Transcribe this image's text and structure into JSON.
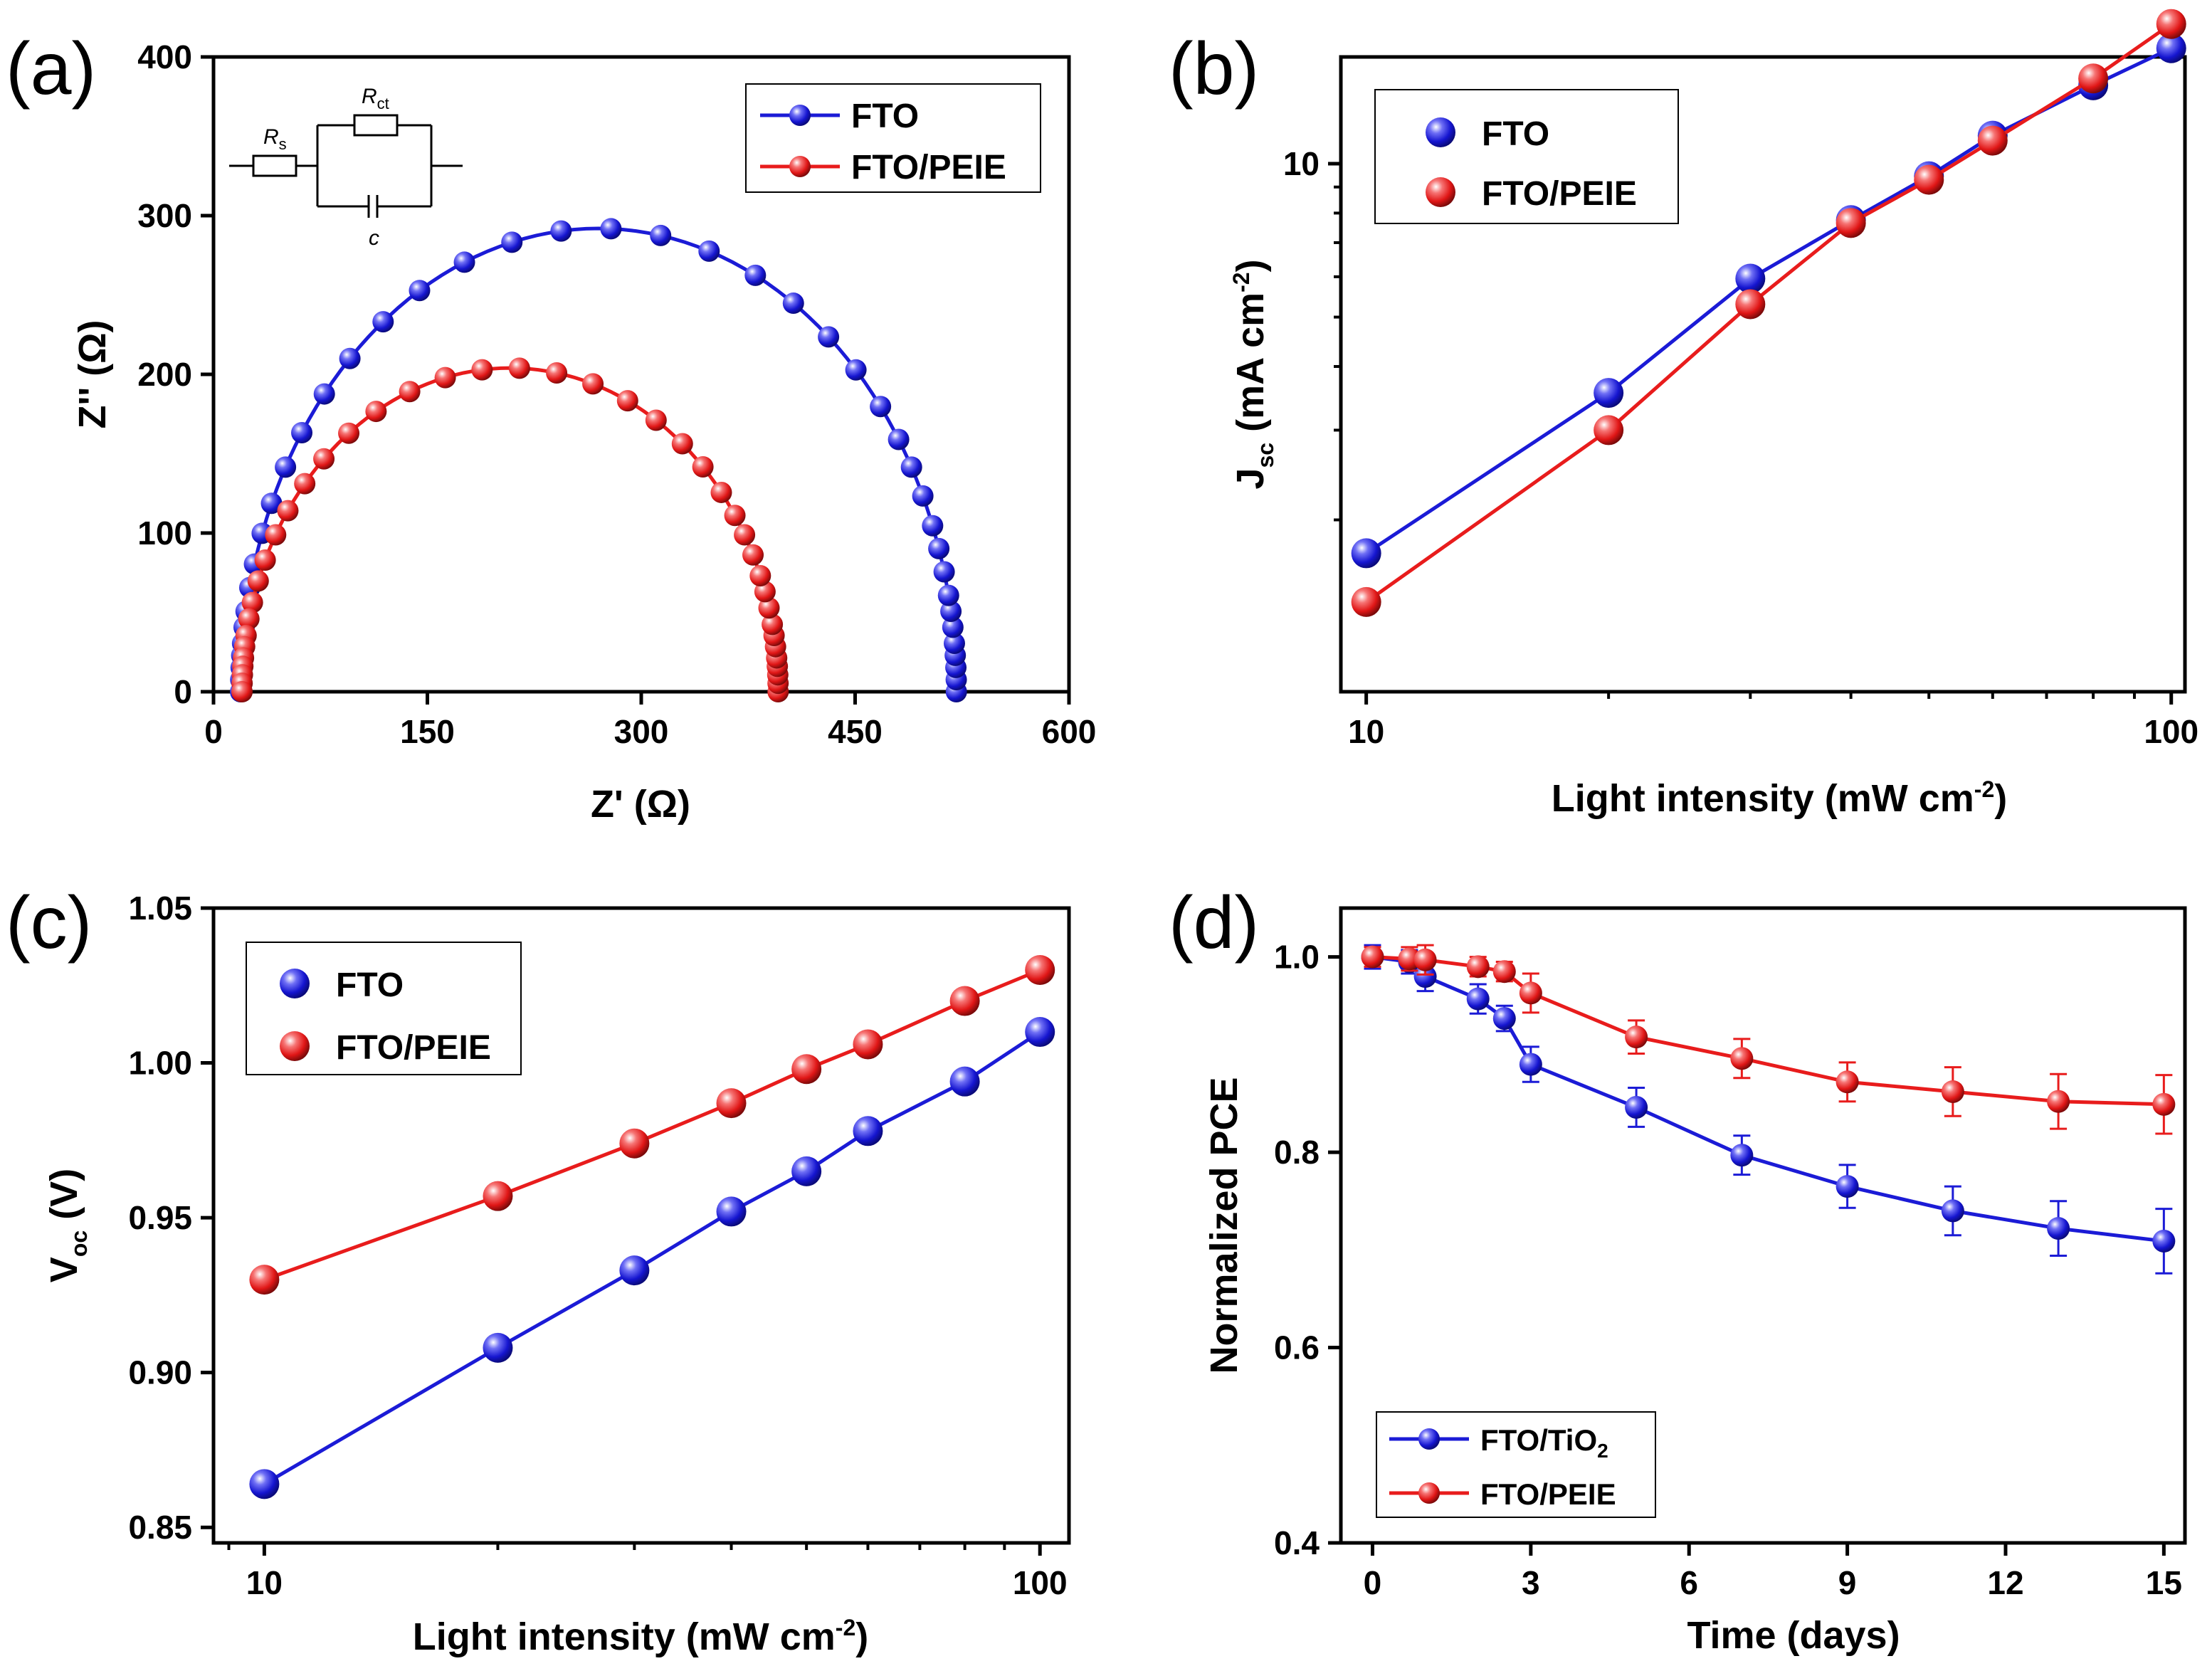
{
  "colors": {
    "fto": "#1b1bd6",
    "peie": "#e81c1c",
    "axis": "#000000"
  },
  "chart_data": [
    {
      "panel": "(a)",
      "type": "scatter",
      "xlabel_main": "Z'",
      "xlabel_unit": "(Ω)",
      "ylabel_main": "Z''",
      "ylabel_unit": "(Ω)",
      "xlim": [
        0,
        600
      ],
      "ylim": [
        0,
        400
      ],
      "xticks": [
        0,
        150,
        300,
        450,
        600
      ],
      "yticks": [
        0,
        100,
        200,
        300,
        400
      ],
      "xtick_labels": [
        "0",
        "150",
        "300",
        "450",
        "600"
      ],
      "ytick_labels": [
        "0",
        "100",
        "200",
        "300",
        "400"
      ],
      "legend_position": "top-right",
      "inset": {
        "rs_main": "R",
        "rs_sub": "s",
        "rct_main": "R",
        "rct_sub": "ct",
        "c_label": "c"
      },
      "series": [
        {
          "name": "FTO",
          "key": "fto",
          "shape": "semicircle",
          "color": "#1b1bd6",
          "center": 270,
          "radius": 251,
          "yscale": 1.163,
          "angles_deg": [
            0,
            1.5,
            3,
            4.5,
            6,
            8,
            10,
            12,
            15,
            18,
            21,
            25,
            29,
            33,
            38,
            44,
            50,
            57,
            64,
            72,
            80,
            88,
            96,
            104,
            112,
            120,
            127,
            134,
            140,
            146,
            151,
            156,
            160,
            164,
            167,
            170,
            172,
            174,
            175.5,
            177,
            178.5,
            180
          ]
        },
        {
          "name": "FTO/PEIE",
          "key": "peie",
          "shape": "semicircle",
          "color": "#e81c1c",
          "center": 208,
          "radius": 188,
          "yscale": 1.085,
          "angles_deg": [
            0,
            1.5,
            3,
            4.5,
            6,
            8,
            10,
            12,
            15,
            18,
            21,
            25,
            29,
            33,
            38,
            44,
            50,
            57,
            64,
            72,
            80,
            88,
            96,
            104,
            112,
            120,
            127,
            134,
            140,
            146,
            151,
            156,
            160,
            164,
            167,
            170,
            172,
            174,
            175.5,
            177,
            178.5,
            180
          ]
        }
      ]
    },
    {
      "panel": "(b)",
      "type": "line",
      "xscale": "log",
      "yscale": "log",
      "xlabel": "Light intensity (mW cm",
      "xlabel_sup": "-2",
      "xlabel_end": ")",
      "ylabel_main": "J",
      "ylabel_sub": "sc",
      "ylabel_rest": " (mA cm",
      "ylabel_sup": "-2",
      "ylabel_end": ")",
      "xlim": [
        9.3,
        104
      ],
      "ylim": [
        0.92,
        16.2
      ],
      "xticks": [
        10,
        100
      ],
      "xtick_labels": [
        "10",
        "100"
      ],
      "yticks": [
        10
      ],
      "ytick_labels": [
        "10"
      ],
      "legend_position": "top-left",
      "x": [
        10,
        20,
        30,
        40,
        50,
        60,
        80,
        100
      ],
      "series": [
        {
          "name": "FTO",
          "key": "fto",
          "color": "#1b1bd6",
          "values": [
            1.72,
            3.55,
            5.95,
            7.75,
            9.45,
            11.35,
            14.25,
            16.85
          ]
        },
        {
          "name": "FTO/PEIE",
          "key": "peie",
          "color": "#e81c1c",
          "values": [
            1.38,
            3.0,
            5.3,
            7.65,
            9.3,
            11.1,
            14.7,
            18.8
          ]
        }
      ]
    },
    {
      "panel": "(c)",
      "type": "line",
      "xscale": "log",
      "xlabel": "Light intensity (mW cm",
      "xlabel_sup": "-2",
      "xlabel_end": ")",
      "ylabel_main": "V",
      "ylabel_sub": "oc",
      "ylabel_rest": " (V)",
      "xlim": [
        8.6,
        109
      ],
      "ylim": [
        0.845,
        1.05
      ],
      "xticks": [
        10,
        100
      ],
      "xtick_labels": [
        "10",
        "100"
      ],
      "yticks": [
        0.85,
        0.9,
        0.95,
        1.0,
        1.05
      ],
      "ytick_labels": [
        "0.85",
        "0.90",
        "0.95",
        "1.00",
        "1.05"
      ],
      "legend_position": "top-left",
      "x": [
        10,
        20,
        30,
        40,
        50,
        60,
        80,
        100
      ],
      "series": [
        {
          "name": "FTO",
          "key": "fto",
          "color": "#1b1bd6",
          "values": [
            0.864,
            0.908,
            0.933,
            0.952,
            0.965,
            0.978,
            0.994,
            1.01
          ]
        },
        {
          "name": "FTO/PEIE",
          "key": "peie",
          "color": "#e81c1c",
          "values": [
            0.93,
            0.957,
            0.974,
            0.987,
            0.998,
            1.006,
            1.02,
            1.03
          ]
        }
      ]
    },
    {
      "panel": "(d)",
      "type": "line",
      "xlabel": "Time (days)",
      "ylabel": "Normalized PCE",
      "xlim": [
        -0.6,
        15.4
      ],
      "ylim": [
        0.4,
        1.05
      ],
      "xticks": [
        0,
        3,
        6,
        9,
        12,
        15
      ],
      "xtick_labels": [
        "0",
        "3",
        "6",
        "9",
        "12",
        "15"
      ],
      "yticks": [
        0.4,
        0.6,
        0.8,
        1.0
      ],
      "ytick_labels": [
        "0.4",
        "0.6",
        "0.8",
        "1.0"
      ],
      "legend_position": "bottom-left",
      "x": [
        0,
        0.7,
        1,
        2,
        2.5,
        3,
        5,
        7,
        9,
        11,
        13,
        15
      ],
      "series": [
        {
          "name": "FTO/TiO",
          "name_sub": "2",
          "key": "fto",
          "color": "#1b1bd6",
          "values": [
            1.0,
            0.995,
            0.98,
            0.957,
            0.937,
            0.89,
            0.846,
            0.797,
            0.765,
            0.74,
            0.722,
            0.709
          ],
          "errors": [
            0.012,
            0.012,
            0.015,
            0.015,
            0.013,
            0.018,
            0.02,
            0.02,
            0.022,
            0.025,
            0.028,
            0.033
          ]
        },
        {
          "name": "FTO/PEIE",
          "key": "peie",
          "color": "#e81c1c",
          "values": [
            1.0,
            0.998,
            0.997,
            0.99,
            0.985,
            0.963,
            0.918,
            0.896,
            0.872,
            0.862,
            0.852,
            0.849
          ],
          "errors": [
            0.01,
            0.012,
            0.015,
            0.01,
            0.01,
            0.02,
            0.017,
            0.02,
            0.02,
            0.025,
            0.028,
            0.03
          ]
        }
      ]
    }
  ]
}
